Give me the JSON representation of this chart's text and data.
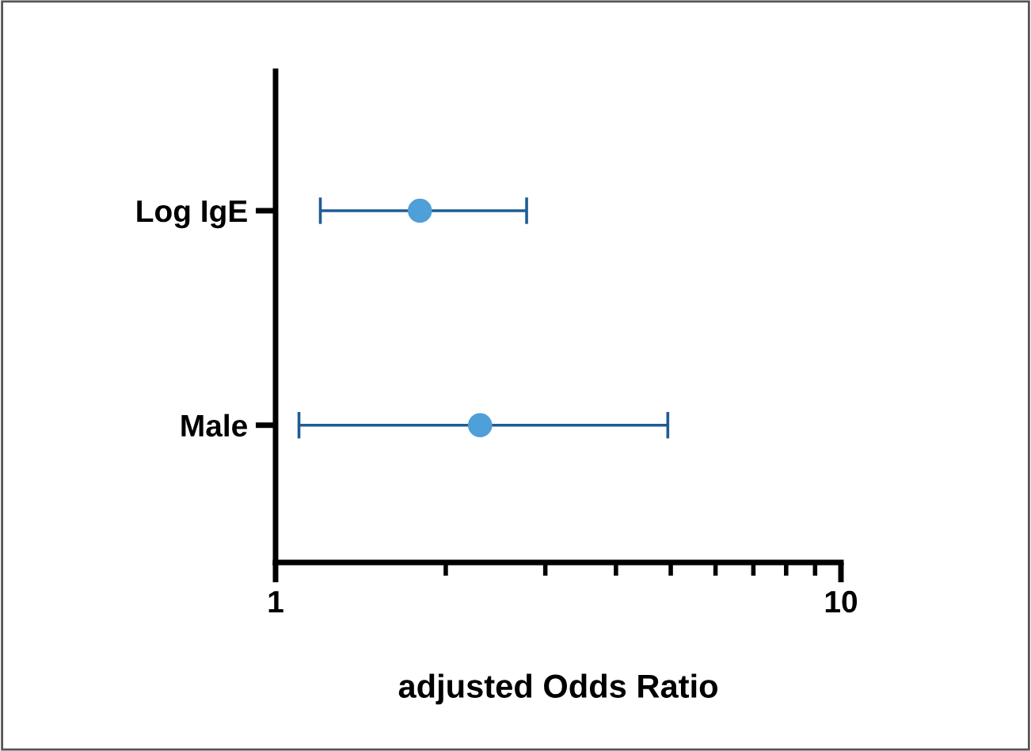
{
  "chart_data": {
    "type": "scatter",
    "orientation": "horizontal",
    "xlabel": "adjusted Odds Ratio",
    "categories": [
      "Log IgE",
      "Male"
    ],
    "series": [
      {
        "color": "#4f9fd9",
        "values": [
          1.8,
          2.3
        ],
        "errors": [
          [
            1.2,
            2.78
          ],
          [
            1.1,
            4.94
          ]
        ]
      }
    ],
    "log": "x",
    "xlim": [
      1,
      10
    ],
    "xticks": [
      1,
      10
    ],
    "marker": "circle",
    "grid": false,
    "legend": false
  }
}
